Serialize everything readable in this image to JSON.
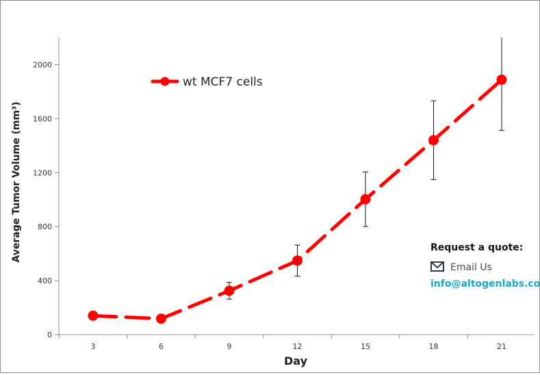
{
  "chart_data": {
    "type": "line",
    "title": "",
    "xlabel": "Day",
    "ylabel": "Average Tumor Volume (mm³)",
    "categories": [
      "3",
      "6",
      "9",
      "12",
      "15",
      "18",
      "21"
    ],
    "y_ticks": [
      "0",
      "400",
      "800",
      "1200",
      "1600",
      "2000"
    ],
    "ylim": [
      0,
      2200
    ],
    "grid": false,
    "legend_position": "top-left",
    "series": [
      {
        "name": "wt MCF7 cells",
        "color": "#ff0000",
        "style": "dashed line with circle markers",
        "x": [
          3,
          6,
          9,
          12,
          15,
          18,
          21
        ],
        "values": [
          140,
          118,
          325,
          548,
          1003,
          1440,
          1888
        ],
        "error": [
          0,
          0,
          62,
          115,
          202,
          292,
          376
        ]
      }
    ]
  },
  "contact": {
    "heading": "Request a quote:",
    "email_label": "Email Us",
    "email_address": "info@altogenlabs.com",
    "icon": "envelope-icon",
    "email_color": "#1aa6c6"
  }
}
